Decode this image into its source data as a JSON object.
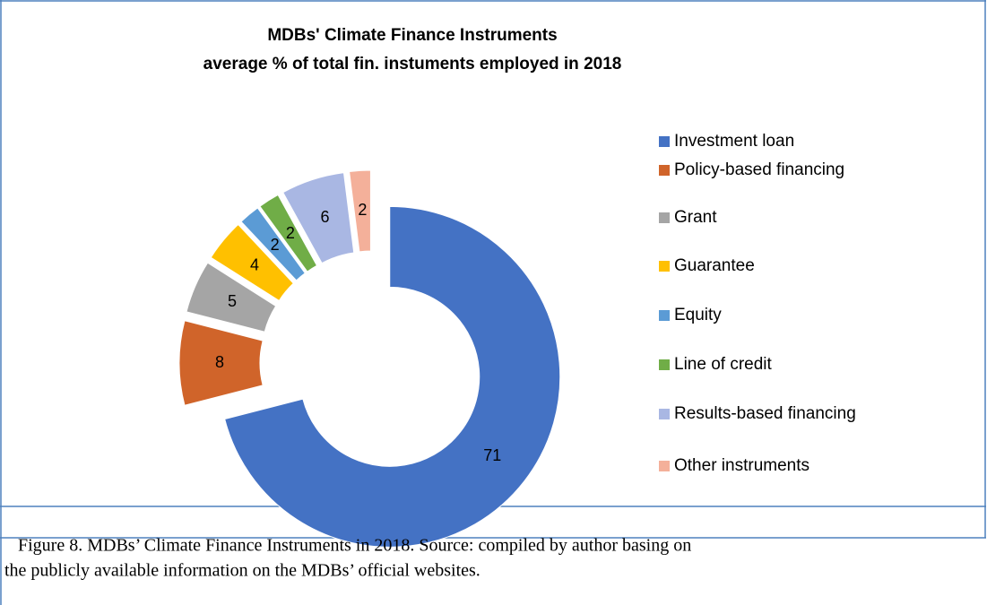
{
  "chart_data": {
    "type": "donut",
    "title": "MDBs' Climate Finance Instruments",
    "subtitle": "average % of total fin. instuments employed in 2018",
    "categories": [
      "Investment loan",
      "Policy-based financing",
      "Grant",
      "Guarantee",
      "Equity",
      "Line of credit",
      "Results-based financing",
      "Other instruments"
    ],
    "values": [
      71,
      8,
      5,
      4,
      2,
      2,
      6,
      2
    ],
    "colors": [
      "#4472c4",
      "#d0642a",
      "#a5a5a5",
      "#ffc000",
      "#5b9bd5",
      "#70ad47",
      "#a9b7e3",
      "#f4b09a"
    ],
    "legend": "right"
  },
  "caption": {
    "line1": "Figure 8. MDBs’ Climate Finance Instruments in 2018. Source: compiled by author basing on",
    "line2": "the publicly available information on the MDBs’ official websites."
  }
}
